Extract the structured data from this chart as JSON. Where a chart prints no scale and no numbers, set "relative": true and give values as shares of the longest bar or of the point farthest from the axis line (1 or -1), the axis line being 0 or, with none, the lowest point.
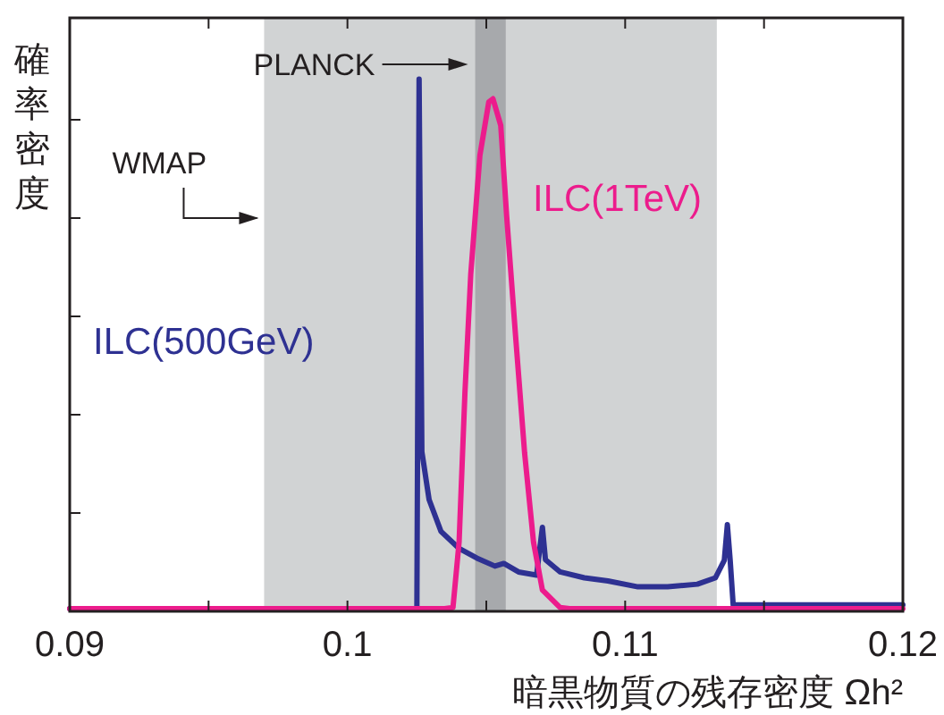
{
  "chart_data": {
    "type": "line",
    "relative": true,
    "xlabel": "暗黒物質の残存密度 Ωh²",
    "ylabel": "確率密度",
    "grid": false,
    "xlim": [
      0.09,
      0.12
    ],
    "xticks": [
      0.09,
      {
        "value": 0.095,
        "label": null
      },
      0.1,
      {
        "value": 0.105,
        "label": null
      },
      0.11,
      {
        "value": 0.115,
        "label": null
      },
      0.12
    ],
    "bands": [
      {
        "axis": "x",
        "from": 0.097,
        "to": 0.1133,
        "label": "WMAP",
        "color": "#d1d3d4"
      },
      {
        "axis": "x",
        "from": 0.1046,
        "to": 0.1057,
        "label": "PLANCK",
        "color": "#a7a9ac"
      }
    ],
    "series": [
      {
        "name": "ILC(500GeV)",
        "color": "#2e3192",
        "x": [
          0.09,
          0.1025,
          0.10258,
          0.10268,
          0.10294,
          0.10337,
          0.10402,
          0.10466,
          0.10531,
          0.10563,
          0.10616,
          0.10681,
          0.10702,
          0.10713,
          0.10766,
          0.10853,
          0.10938,
          0.11046,
          0.11153,
          0.1126,
          0.11325,
          0.11357,
          0.11368,
          0.11378,
          0.11389,
          0.12
        ],
        "values": [
          0.005,
          0.005,
          1.0,
          0.3,
          0.21,
          0.15,
          0.118,
          0.1,
          0.085,
          0.09,
          0.074,
          0.068,
          0.158,
          0.097,
          0.074,
          0.063,
          0.057,
          0.046,
          0.046,
          0.051,
          0.063,
          0.096,
          0.163,
          0.097,
          0.012,
          0.012
        ]
      },
      {
        "name": "ILC(1TeV)",
        "color": "#ec1c8c",
        "x": [
          0.09,
          0.1035,
          0.1038,
          0.10402,
          0.10423,
          0.10444,
          0.10477,
          0.10509,
          0.10524,
          0.10552,
          0.10573,
          0.10605,
          0.10638,
          0.1067,
          0.10702,
          0.10766,
          0.108,
          0.12
        ],
        "values": [
          0.005,
          0.005,
          0.007,
          0.13,
          0.41,
          0.633,
          0.857,
          0.957,
          0.963,
          0.913,
          0.745,
          0.52,
          0.297,
          0.13,
          0.04,
          0.007,
          0.005,
          0.005
        ]
      }
    ]
  }
}
